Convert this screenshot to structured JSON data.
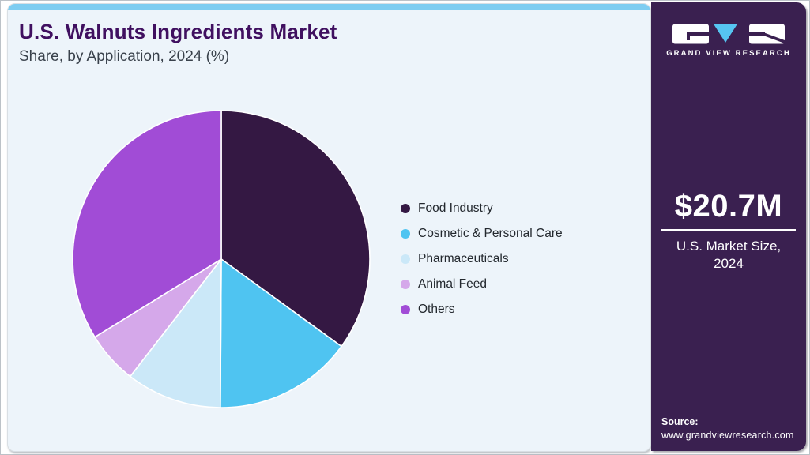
{
  "header": {
    "title": "U.S. Walnuts Ingredients Market",
    "subtitle": "Share, by Application, 2024 (%)"
  },
  "chart_data": {
    "type": "pie",
    "title": "U.S. Walnuts Ingredients Market Share, by Application, 2024 (%)",
    "unit": "%",
    "start_angle_deg": 0,
    "direction": "clockwise",
    "legend_position": "right",
    "slices": [
      {
        "label": "Food Industry",
        "value": 35.0,
        "color": "#341843"
      },
      {
        "label": "Cosmetic & Personal Care",
        "value": 15.1,
        "color": "#4fc4f1"
      },
      {
        "label": "Pharmaceuticals",
        "value": 10.4,
        "color": "#cbe8f8"
      },
      {
        "label": "Animal Feed",
        "value": 5.7,
        "color": "#d5a8ea"
      },
      {
        "label": "Others",
        "value": 33.8,
        "color": "#a14cd6"
      }
    ]
  },
  "sidebar": {
    "brand": "GRAND VIEW RESEARCH",
    "market_size_value": "$20.7M",
    "market_size_label_line1": "U.S. Market Size,",
    "market_size_label_line2": "2024",
    "source_label": "Source:",
    "source_url": "www.grandviewresearch.com"
  },
  "colors": {
    "accent_bar": "#7ecdf1",
    "card_background": "#edf4fa",
    "sidebar_background": "#3a2050",
    "title_text": "#401060",
    "subtitle_text": "#39414b",
    "legend_text": "#23282e",
    "logo_triangle": "#56c5f1",
    "slice_stroke": "#ffffff"
  }
}
